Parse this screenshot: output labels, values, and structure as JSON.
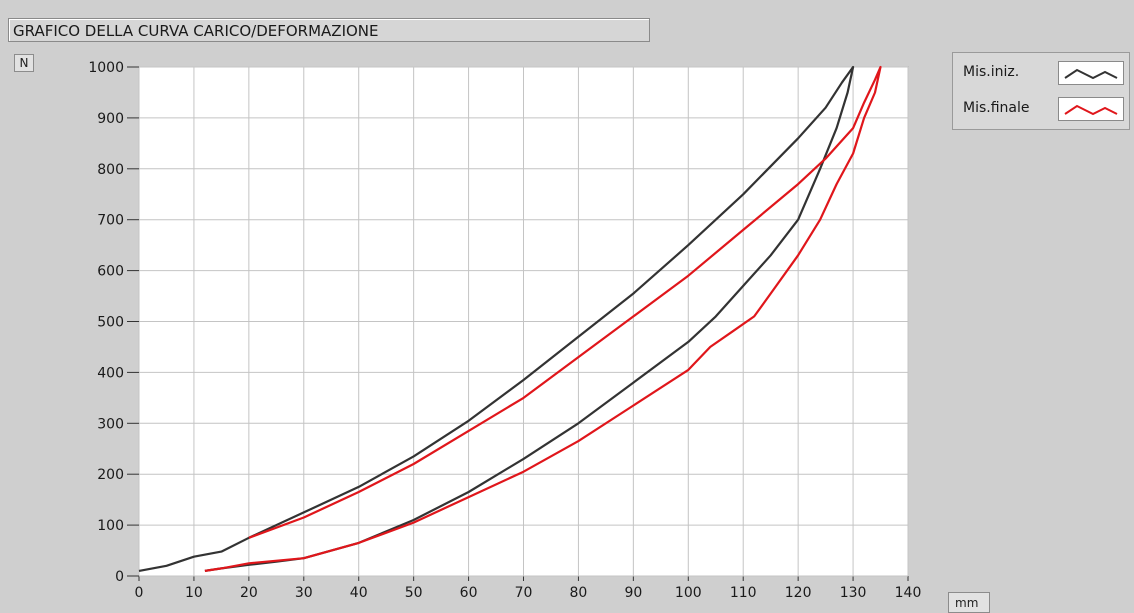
{
  "window": {
    "title": "GRAFICO DELLA CURVA CARICO/DEFORMAZIONE"
  },
  "units": {
    "y": "N",
    "x": "mm"
  },
  "colors": {
    "background": "#cfcfcf",
    "plot_background": "#ffffff",
    "grid": "#c4c4c4",
    "series1": "#333333",
    "series2": "#e0161b"
  },
  "chart_data": {
    "type": "line",
    "title": "GRAFICO DELLA CURVA CARICO/DEFORMAZIONE",
    "xlabel": "mm",
    "ylabel": "N",
    "xlim": [
      0,
      140
    ],
    "ylim": [
      0,
      1000
    ],
    "xticks": [
      0,
      10,
      20,
      30,
      40,
      50,
      60,
      70,
      80,
      90,
      100,
      110,
      120,
      130,
      140
    ],
    "yticks": [
      0,
      100,
      200,
      300,
      400,
      500,
      600,
      700,
      800,
      900,
      1000
    ],
    "grid": true,
    "legend": "right",
    "series": [
      {
        "name": "Mis.iniz.",
        "color": "#333333",
        "x": [
          0,
          5,
          10,
          15,
          20,
          30,
          40,
          50,
          60,
          70,
          80,
          90,
          100,
          110,
          120,
          125,
          128,
          130,
          129,
          127,
          124,
          120,
          115,
          110,
          105,
          100,
          90,
          80,
          70,
          60,
          50,
          40,
          30,
          25,
          20,
          15,
          12
        ],
        "y": [
          10,
          20,
          38,
          48,
          75,
          125,
          175,
          235,
          305,
          385,
          470,
          555,
          650,
          750,
          860,
          920,
          970,
          1000,
          950,
          880,
          800,
          700,
          630,
          570,
          510,
          460,
          380,
          300,
          230,
          165,
          110,
          65,
          35,
          28,
          22,
          15,
          10
        ]
      },
      {
        "name": "Mis.finale",
        "color": "#e0161b",
        "x": [
          20,
          30,
          40,
          50,
          60,
          70,
          80,
          90,
          100,
          110,
          120,
          125,
          130,
          132,
          134,
          135,
          134,
          132,
          130,
          127,
          124,
          120,
          116,
          112,
          108,
          104,
          100,
          90,
          80,
          70,
          60,
          50,
          40,
          30,
          20,
          15,
          12
        ],
        "y": [
          75,
          115,
          165,
          220,
          285,
          350,
          430,
          510,
          590,
          680,
          770,
          820,
          880,
          930,
          975,
          1000,
          950,
          900,
          830,
          770,
          700,
          630,
          570,
          510,
          480,
          450,
          405,
          335,
          265,
          205,
          155,
          105,
          65,
          35,
          25,
          15,
          10
        ]
      }
    ]
  }
}
